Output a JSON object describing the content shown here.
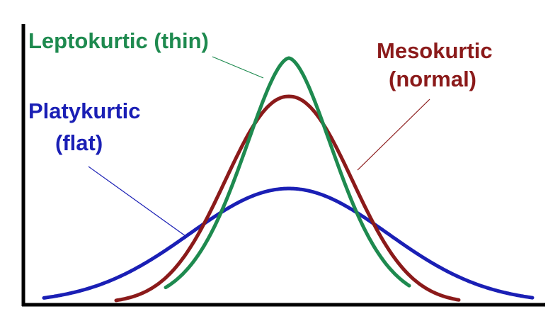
{
  "labels": {
    "leptokurtic": {
      "text": "Leptokurtic (thin)",
      "color": "#1e8a4f"
    },
    "mesokurtic_line1": {
      "text": "Mesokurtic",
      "color": "#8b1a1a"
    },
    "mesokurtic_line2": {
      "text": "(normal)",
      "color": "#8b1a1a"
    },
    "platykurtic_line1": {
      "text": "Platykurtic",
      "color": "#1a1fb5"
    },
    "platykurtic_line2": {
      "text": "(flat)",
      "color": "#1a1fb5"
    }
  },
  "curves": {
    "leptokurtic_color": "#1e8a4f",
    "mesokurtic_color": "#8b1a1a",
    "platykurtic_color": "#1a1fb5"
  },
  "axis_color": "#000000"
}
